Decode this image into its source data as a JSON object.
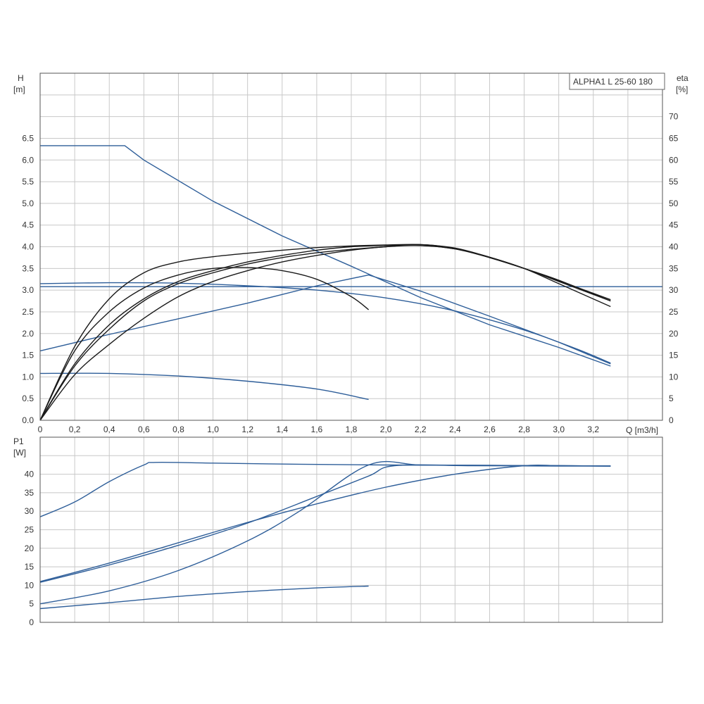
{
  "chart_data": [
    {
      "type": "line",
      "panel": "head-efficiency",
      "title": "ALPHA1 L 25-60 180",
      "xlabel": "Q [m3/h]",
      "ylabel_name": "H",
      "ylabel_unit": "[m]",
      "y2label_name": "eta",
      "y2label_unit": "[%]",
      "xlim": [
        0,
        3.6
      ],
      "xticks": [
        0,
        0.2,
        0.4,
        0.6,
        0.8,
        1.0,
        1.2,
        1.4,
        1.6,
        1.8,
        2.0,
        2.2,
        2.4,
        2.6,
        2.8,
        3.0,
        3.2
      ],
      "xtick_labels": [
        "0",
        "0,2",
        "0,4",
        "0,6",
        "0,8",
        "1,0",
        "1,2",
        "1,4",
        "1,6",
        "1,8",
        "2,0",
        "2,2",
        "2,4",
        "2,6",
        "2,8",
        "3,0",
        "3,2"
      ],
      "ylim": [
        0,
        8
      ],
      "yticks": [
        0,
        0.5,
        1.0,
        1.5,
        2.0,
        2.5,
        3.0,
        3.5,
        4.0,
        4.5,
        5.0,
        5.5,
        6.0,
        6.5
      ],
      "ytick_labels": [
        "0.0",
        "0.5",
        "1.0",
        "1.5",
        "2.0",
        "2.5",
        "3.0",
        "3.5",
        "4.0",
        "4.5",
        "5.0",
        "5.5",
        "6.0",
        "6.5"
      ],
      "y2lim": [
        0,
        80
      ],
      "y2ticks": [
        0,
        5,
        10,
        15,
        20,
        25,
        30,
        35,
        40,
        45,
        50,
        55,
        60,
        65,
        70
      ],
      "y2tick_labels": [
        "0",
        "5",
        "10",
        "15",
        "20",
        "25",
        "30",
        "35",
        "40",
        "45",
        "50",
        "55",
        "60",
        "65",
        "70"
      ],
      "grid": true,
      "legend_position": "top-right",
      "head_series": [
        {
          "color": "#2e5e99",
          "x": [
            0,
            0.49,
            0.6,
            1.0,
            1.4,
            1.8,
            2.2,
            2.6,
            3.0,
            3.3
          ],
          "y": [
            6.33,
            6.33,
            6.0,
            5.05,
            4.25,
            3.55,
            2.83,
            2.2,
            1.68,
            1.25
          ]
        },
        {
          "color": "#2e5e99",
          "x": [
            0,
            0.4,
            0.8,
            1.2,
            1.6,
            2.0,
            2.4,
            2.8,
            3.1,
            3.3
          ],
          "y": [
            3.15,
            3.17,
            3.16,
            3.1,
            3.0,
            2.82,
            2.52,
            2.08,
            1.65,
            1.32
          ]
        },
        {
          "color": "#2e5e99",
          "x": [
            0,
            3.6
          ],
          "y": [
            3.08,
            3.08
          ]
        },
        {
          "color": "#2e5e99",
          "x": [
            0,
            0.4,
            0.8,
            1.2,
            1.6,
            1.9,
            2.2,
            2.6,
            3.0,
            3.3
          ],
          "y": [
            1.6,
            1.98,
            2.34,
            2.7,
            3.1,
            3.35,
            2.98,
            2.4,
            1.8,
            1.3
          ]
        },
        {
          "color": "#2e5e99",
          "x": [
            0,
            0.4,
            0.8,
            1.2,
            1.6,
            1.9
          ],
          "y": [
            1.08,
            1.08,
            1.02,
            0.9,
            0.72,
            0.48
          ]
        }
      ],
      "eta_series": [
        {
          "color": "#1a1a1a",
          "x": [
            0,
            0.2,
            0.4,
            0.6,
            0.8,
            1.0,
            1.2,
            1.4,
            1.6,
            1.8,
            1.9
          ],
          "y": [
            0,
            16,
            25,
            30.5,
            33.5,
            35,
            35.2,
            34.5,
            32.5,
            28.5,
            25.5
          ]
        },
        {
          "color": "#1a1a1a",
          "x": [
            0,
            0.2,
            0.4,
            0.6,
            0.8,
            1.0,
            1.2,
            1.4,
            1.6,
            1.8,
            2.0,
            2.2,
            2.4,
            2.6,
            2.8,
            3.0,
            3.3
          ],
          "y": [
            0,
            17,
            28,
            34,
            36.5,
            37.7,
            38.5,
            39.2,
            39.8,
            40.2,
            40.4,
            40.5,
            39.7,
            37.6,
            35,
            31.5,
            26.2
          ]
        },
        {
          "color": "#1a1a1a",
          "x": [
            0,
            0.2,
            0.4,
            0.6,
            0.8,
            1.0,
            1.2,
            1.4,
            1.6,
            1.8,
            2.0,
            2.2,
            2.4,
            2.6,
            2.8,
            3.0,
            3.3
          ],
          "y": [
            0,
            13,
            22,
            28,
            32,
            34.5,
            36.5,
            38,
            39.2,
            40,
            40.3,
            40.3,
            39.5,
            37.5,
            35,
            32,
            27.5
          ]
        },
        {
          "color": "#1a1a1a",
          "x": [
            0,
            0.2,
            0.4,
            0.6,
            0.8,
            1.0,
            1.2,
            1.4,
            1.6,
            1.8,
            2.0,
            2.2,
            2.4,
            2.6,
            2.8,
            3.0,
            3.3
          ],
          "y": [
            0,
            12.5,
            21,
            27.5,
            31.5,
            34,
            36,
            37.5,
            38.6,
            39.4,
            40,
            40.5,
            39.6,
            37.5,
            35,
            32.3,
            27.5
          ]
        },
        {
          "color": "#1a1a1a",
          "x": [
            0,
            0.2,
            0.4,
            0.6,
            0.8,
            1.0,
            1.2,
            1.4,
            1.6,
            1.8,
            2.0,
            2.2,
            2.4,
            2.6,
            2.8,
            3.0,
            3.3
          ],
          "y": [
            0,
            10.5,
            17.5,
            23.5,
            28.5,
            32,
            34.5,
            36.5,
            38,
            39.2,
            40,
            40.3,
            39.5,
            37.6,
            35,
            32.2,
            27.8
          ]
        }
      ]
    },
    {
      "type": "line",
      "panel": "power",
      "ylabel_name": "P1",
      "ylabel_unit": "[W]",
      "xlim": [
        0,
        3.6
      ],
      "ylim": [
        0,
        50
      ],
      "yticks": [
        0,
        5,
        10,
        15,
        20,
        25,
        30,
        35,
        40
      ],
      "ytick_labels": [
        "0",
        "5",
        "10",
        "15",
        "20",
        "25",
        "30",
        "35",
        "40"
      ],
      "grid": true,
      "series": [
        {
          "color": "#2e5e99",
          "x": [
            0,
            0.2,
            0.4,
            0.6,
            0.67,
            1.0,
            1.5,
            2.0,
            2.5,
            3.0,
            3.3
          ],
          "y": [
            28.5,
            32.5,
            38,
            42.5,
            43.2,
            43,
            42.7,
            42.5,
            42.4,
            42.3,
            42.2
          ]
        },
        {
          "color": "#2e5e99",
          "x": [
            0,
            0.4,
            0.8,
            1.2,
            1.6,
            2.0,
            2.4,
            2.8,
            3.0,
            3.3
          ],
          "y": [
            11,
            16,
            21.5,
            27,
            32,
            36.5,
            40,
            42.3,
            42.3,
            42.2
          ]
        },
        {
          "color": "#2e5e99",
          "x": [
            0,
            0.4,
            0.8,
            1.2,
            1.6,
            1.9,
            2.05,
            2.5,
            3.0,
            3.3
          ],
          "y": [
            10.8,
            15.5,
            20.8,
            26.8,
            34,
            39.5,
            42.3,
            42.3,
            42.2,
            42.2
          ]
        },
        {
          "color": "#2e5e99",
          "x": [
            0,
            0.4,
            0.8,
            1.2,
            1.5,
            1.9,
            2.2,
            2.6,
            3.0,
            3.3
          ],
          "y": [
            5,
            8.5,
            14,
            22,
            30,
            42.5,
            42.5,
            42.4,
            42.3,
            42.2
          ]
        },
        {
          "color": "#2e5e99",
          "x": [
            0,
            0.4,
            0.8,
            1.2,
            1.6,
            1.9
          ],
          "y": [
            3.7,
            5.3,
            7,
            8.3,
            9.3,
            9.8
          ]
        }
      ]
    }
  ]
}
